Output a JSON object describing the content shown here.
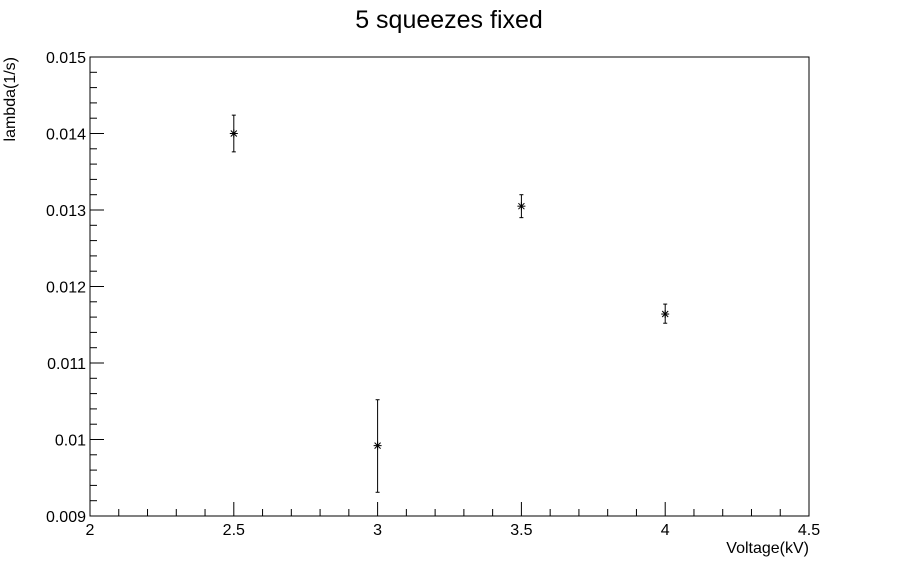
{
  "chart_data": {
    "type": "scatter",
    "title": "5 squeezes fixed",
    "xlabel": "Voltage(kV)",
    "ylabel": "lambda(1/s)",
    "xlim": [
      2,
      4.5
    ],
    "ylim": [
      0.009,
      0.015
    ],
    "x_ticks": [
      "2",
      "2.5",
      "3",
      "3.5",
      "4",
      "4.5"
    ],
    "x_tick_values": [
      2,
      2.5,
      3,
      3.5,
      4,
      4.5
    ],
    "y_ticks": [
      "0.009",
      "0.01",
      "0.011",
      "0.012",
      "0.013",
      "0.014",
      "0.015"
    ],
    "y_tick_values": [
      0.009,
      0.01,
      0.011,
      0.012,
      0.013,
      0.014,
      0.015
    ],
    "grid": false,
    "marker": "asterisk",
    "points": [
      {
        "x": 2.5,
        "y": 0.014,
        "err_low": 0.01376,
        "err_high": 0.01424
      },
      {
        "x": 3.0,
        "y": 0.00992,
        "err_low": 0.00931,
        "err_high": 0.01052
      },
      {
        "x": 3.5,
        "y": 0.01305,
        "err_low": 0.0129,
        "err_high": 0.0132
      },
      {
        "x": 4.0,
        "y": 0.01164,
        "err_low": 0.01152,
        "err_high": 0.01177
      }
    ]
  }
}
